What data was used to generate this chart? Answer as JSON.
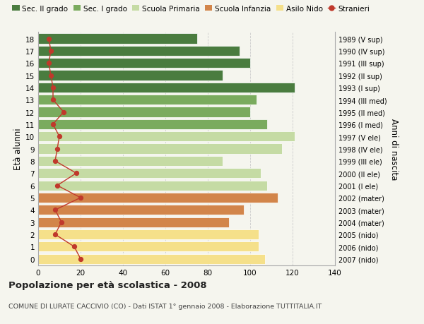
{
  "ages": [
    18,
    17,
    16,
    15,
    14,
    13,
    12,
    11,
    10,
    9,
    8,
    7,
    6,
    5,
    4,
    3,
    2,
    1,
    0
  ],
  "years": [
    "1989 (V sup)",
    "1990 (IV sup)",
    "1991 (III sup)",
    "1992 (II sup)",
    "1993 (I sup)",
    "1994 (III med)",
    "1995 (II med)",
    "1996 (I med)",
    "1997 (V ele)",
    "1998 (IV ele)",
    "1999 (III ele)",
    "2000 (II ele)",
    "2001 (I ele)",
    "2002 (mater)",
    "2003 (mater)",
    "2004 (mater)",
    "2005 (nido)",
    "2006 (nido)",
    "2007 (nido)"
  ],
  "bar_values": [
    75,
    95,
    100,
    87,
    121,
    103,
    100,
    108,
    121,
    115,
    87,
    105,
    108,
    113,
    97,
    90,
    104,
    104,
    107
  ],
  "bar_colors": [
    "#4a7c3f",
    "#4a7c3f",
    "#4a7c3f",
    "#4a7c3f",
    "#4a7c3f",
    "#7aab5e",
    "#7aab5e",
    "#7aab5e",
    "#c5dba4",
    "#c5dba4",
    "#c5dba4",
    "#c5dba4",
    "#c5dba4",
    "#d2854a",
    "#d2854a",
    "#d2854a",
    "#f5e08a",
    "#f5e08a",
    "#f5e08a"
  ],
  "stranieri_values": [
    5,
    6,
    5,
    6,
    7,
    7,
    12,
    7,
    10,
    9,
    8,
    18,
    9,
    20,
    8,
    11,
    8,
    17,
    20
  ],
  "title": "Popolazione per età scolastica - 2008",
  "subtitle": "COMUNE DI LURATE CACCIVIO (CO) - Dati ISTAT 1° gennaio 2008 - Elaborazione TUTTITALIA.IT",
  "ylabel_left": "Età alunni",
  "ylabel_right": "Anni di nascita",
  "xlim": [
    0,
    140
  ],
  "xticks": [
    0,
    20,
    40,
    60,
    80,
    100,
    120,
    140
  ],
  "legend_labels": [
    "Sec. II grado",
    "Sec. I grado",
    "Scuola Primaria",
    "Scuola Infanzia",
    "Asilo Nido",
    "Stranieri"
  ],
  "legend_colors": [
    "#4a7c3f",
    "#7aab5e",
    "#c5dba4",
    "#d2854a",
    "#f5e08a",
    "#c0392b"
  ],
  "bar_height": 0.82,
  "bg_color": "#f5f5ee",
  "stranieri_color": "#c0392b",
  "grid_color": "#cccccc"
}
